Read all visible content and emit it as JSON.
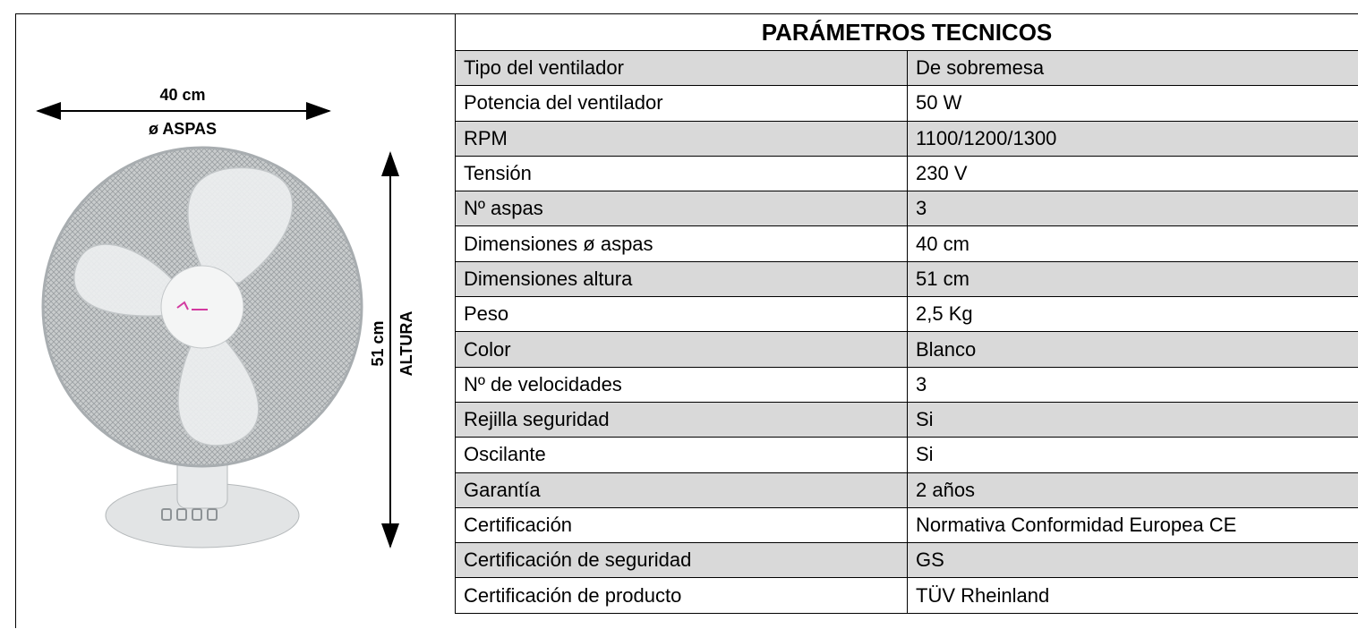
{
  "dimensions": {
    "width": "40 cm",
    "width_label": "ø ASPAS",
    "height": "51 cm",
    "height_label": "ALTURA"
  },
  "table": {
    "title": "PARÁMETROS TECNICOS",
    "rows": [
      [
        "Tipo del ventilador",
        "De sobremesa"
      ],
      [
        "Potencia del ventilador",
        "50 W"
      ],
      [
        "RPM",
        "1100/1200/1300"
      ],
      [
        "Tensión",
        "230 V"
      ],
      [
        "Nº aspas",
        "3"
      ],
      [
        "Dimensiones ø aspas",
        "40 cm"
      ],
      [
        "Dimensiones altura",
        "51 cm"
      ],
      [
        "Peso",
        "2,5 Kg"
      ],
      [
        "Color",
        "Blanco"
      ],
      [
        "Nº de velocidades",
        "3"
      ],
      [
        "Rejilla seguridad",
        "Si"
      ],
      [
        "Oscilante",
        "Si"
      ],
      [
        "Garantía",
        "2 años"
      ],
      [
        "Certificación",
        "Normativa Conformidad Europea  CE"
      ],
      [
        "Certificación de seguridad",
        "GS"
      ],
      [
        "Certificación de producto",
        "TÜV Rheinland"
      ]
    ]
  }
}
